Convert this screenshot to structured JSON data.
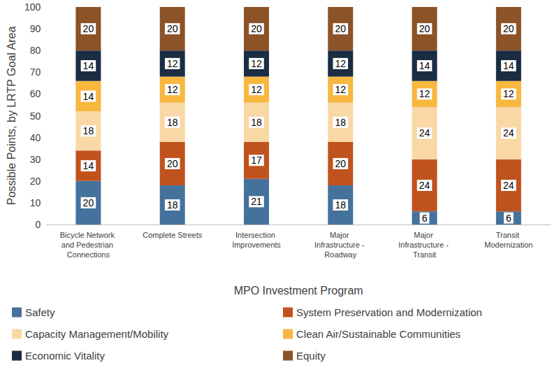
{
  "chart_data": {
    "type": "bar",
    "stacked": true,
    "data_labels": true,
    "grid": false,
    "legend": "bottom",
    "x_label": "MPO Investment Program",
    "y_label": "Possible Points, by LRTP Goal Area",
    "categories": [
      "Bicycle Network and Pedestrian Connections",
      "Complete Streets",
      "Intersection Improvements",
      "Major Infrastructure - Roadway",
      "Major Infrastructure - Transit",
      "Transit Modernization"
    ],
    "ylim": [
      0,
      100
    ],
    "yticks": [
      0,
      10,
      20,
      30,
      40,
      50,
      60,
      70,
      80,
      90,
      100
    ],
    "series": [
      {
        "name": "Safety",
        "color": "#44729c",
        "values": [
          20,
          18,
          21,
          18,
          6,
          6
        ]
      },
      {
        "name": "System Preservation and Modernization",
        "color": "#c0531d",
        "values": [
          14,
          20,
          17,
          20,
          24,
          24
        ]
      },
      {
        "name": "Capacity Management/Mobility",
        "color": "#f9d8a6",
        "values": [
          18,
          18,
          18,
          18,
          24,
          24
        ]
      },
      {
        "name": "Clean Air/Sustainable Communities",
        "color": "#f8b73f",
        "values": [
          14,
          12,
          12,
          12,
          12,
          12
        ]
      },
      {
        "name": "Economic Vitality",
        "color": "#1b2d43",
        "values": [
          14,
          12,
          12,
          12,
          14,
          14
        ]
      },
      {
        "name": "Equity",
        "color": "#8c5228",
        "values": [
          20,
          20,
          20,
          20,
          20,
          20
        ]
      }
    ]
  }
}
